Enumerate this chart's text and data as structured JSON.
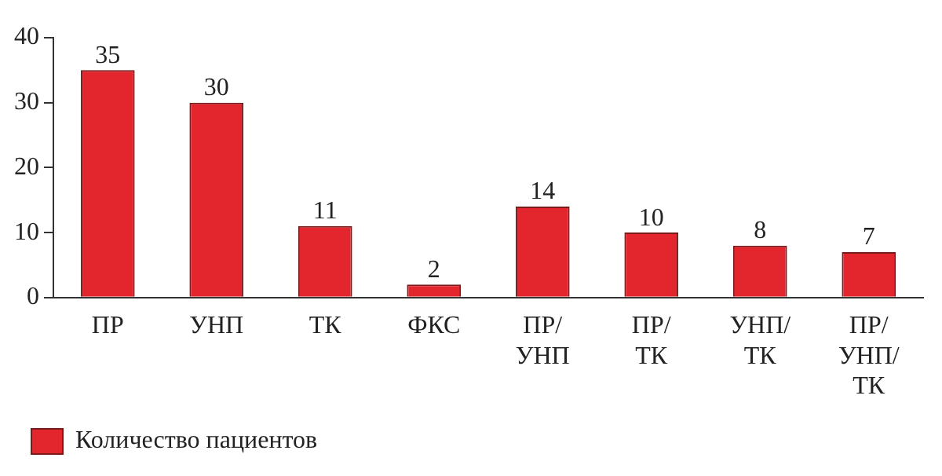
{
  "chart_data": {
    "type": "bar",
    "categories": [
      "ПР",
      "УНП",
      "ТК",
      "ФКС",
      "ПР/УНП",
      "ПР/ТК",
      "УНП/ТК",
      "ПР/УНП/ТК"
    ],
    "series": [
      {
        "name": "Количество пациентов",
        "color": "#e3262e",
        "values": [
          35,
          30,
          11,
          2,
          14,
          10,
          8,
          7
        ]
      }
    ],
    "ylim": [
      0,
      40
    ],
    "yticks": [
      0,
      10,
      20,
      30,
      40
    ],
    "grid": false,
    "legend": "bottom left",
    "data_labels": true
  }
}
